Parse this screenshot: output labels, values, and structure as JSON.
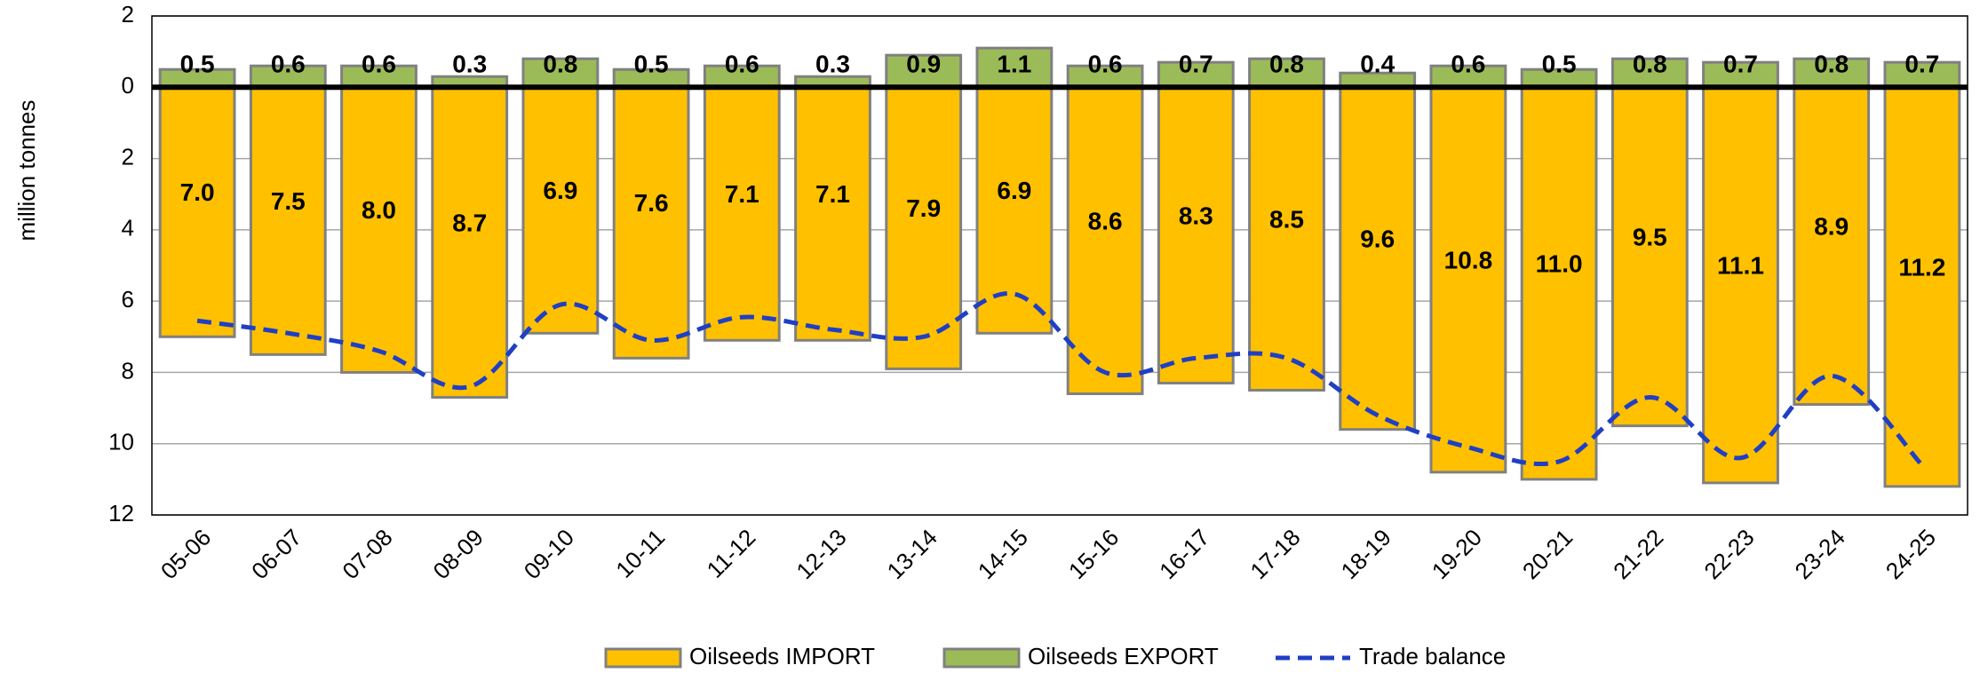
{
  "chart_data": {
    "type": "bar",
    "y_label": "million tonnes",
    "categories": [
      "05-06",
      "06-07",
      "07-08",
      "08-09",
      "09-10",
      "10-11",
      "11-12",
      "12-13",
      "13-14",
      "14-15",
      "15-16",
      "16-17",
      "17-18",
      "18-19",
      "19-20",
      "20-21",
      "21-22",
      "22-23",
      "23-24",
      "24-25"
    ],
    "series": [
      {
        "name": "Oilseeds IMPORT",
        "type": "bar",
        "color": "#FFC000",
        "values": [
          -7.0,
          -7.5,
          -8.0,
          -8.7,
          -6.9,
          -7.6,
          -7.1,
          -7.1,
          -7.9,
          -6.9,
          -8.6,
          -8.3,
          -8.5,
          -9.6,
          -10.8,
          -11.0,
          -9.5,
          -11.1,
          -8.9,
          -11.2
        ],
        "value_labels": [
          "7.0",
          "7.5",
          "8.0",
          "8.7",
          "6.9",
          "7.6",
          "7.1",
          "7.1",
          "7.9",
          "6.9",
          "8.6",
          "8.3",
          "8.5",
          "9.6",
          "10.8",
          "11.0",
          "9.5",
          "11.1",
          "8.9",
          "11.2"
        ]
      },
      {
        "name": "Oilseeds EXPORT",
        "type": "bar",
        "color": "#9BBB59",
        "values": [
          0.5,
          0.6,
          0.6,
          0.3,
          0.8,
          0.5,
          0.6,
          0.3,
          0.9,
          1.1,
          0.6,
          0.7,
          0.8,
          0.4,
          0.6,
          0.5,
          0.8,
          0.7,
          0.8,
          0.7
        ]
      },
      {
        "name": "Trade balance",
        "type": "line",
        "color": "#1F3FC4",
        "values": [
          -6.55,
          -6.9,
          -7.4,
          -8.4,
          -6.1,
          -7.1,
          -6.45,
          -6.8,
          -7.0,
          -5.8,
          -8.0,
          -7.6,
          -7.6,
          -9.2,
          -10.1,
          -10.5,
          -8.7,
          -10.4,
          -8.1,
          -10.6
        ]
      }
    ],
    "ylim": [
      -12,
      2
    ],
    "yticks": [
      {
        "value": -12,
        "label": "12"
      },
      {
        "value": -10,
        "label": "10"
      },
      {
        "value": -8,
        "label": "8"
      },
      {
        "value": -6,
        "label": "6"
      },
      {
        "value": -4,
        "label": "4"
      },
      {
        "value": -2,
        "label": "2"
      },
      0,
      2
    ],
    "grid": true,
    "legend": "bottom"
  }
}
